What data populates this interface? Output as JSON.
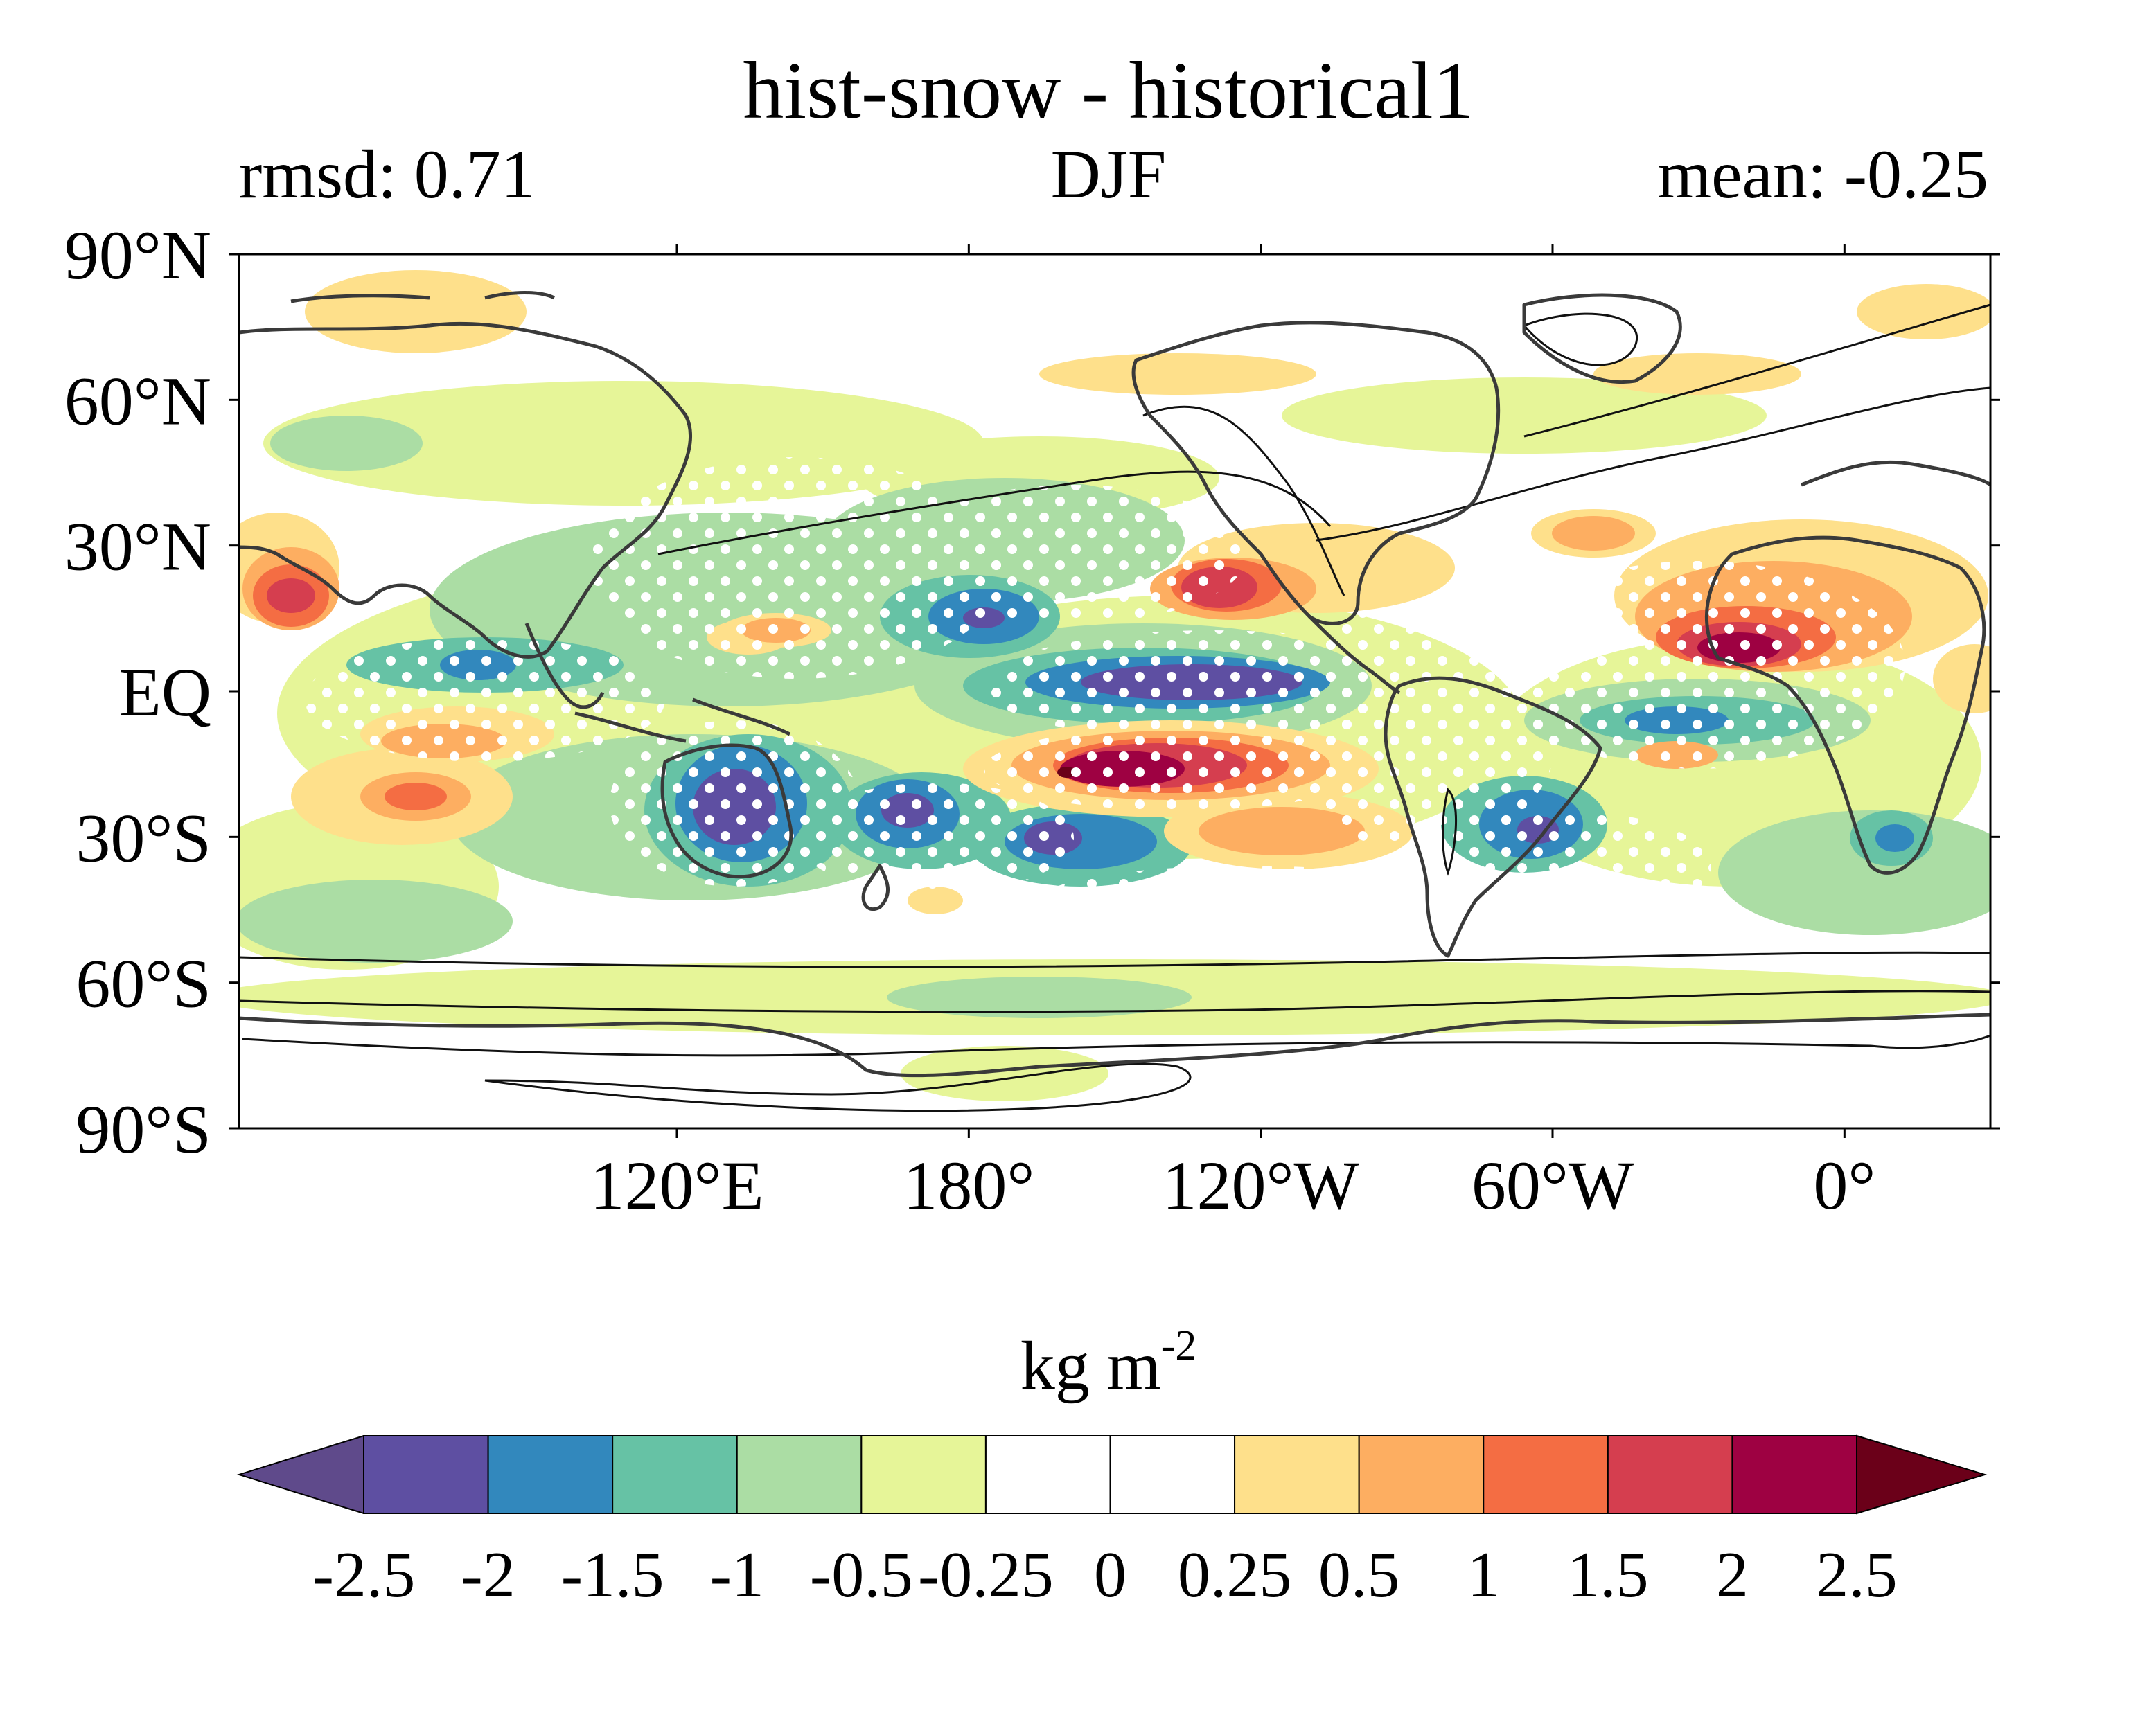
{
  "title": "hist-snow - historical1",
  "subtitle": {
    "left": "rmsd: 0.71",
    "center": "DJF",
    "right": "mean: -0.25"
  },
  "map": {
    "projection": "equirectangular",
    "central_longitude": "150°W",
    "lat_ticks": [
      "90°N",
      "60°N",
      "30°N",
      "EQ",
      "30°S",
      "60°S",
      "90°S"
    ],
    "lon_ticks": [
      "120°E",
      "180°",
      "120°W",
      "60°W",
      "0°"
    ],
    "stippling": "white dots mark significant areas",
    "contour_lines": "black"
  },
  "colorbar": {
    "label": "kg m",
    "label_exponent": "-2",
    "levels": [
      "-2.5",
      "-2",
      "-1.5",
      "-1",
      "-0.5",
      "-0.25",
      "0",
      "0.25",
      "0.5",
      "1",
      "1.5",
      "2",
      "2.5"
    ],
    "colors": [
      "#5f4a8b",
      "#5e4fa2",
      "#3288bd",
      "#66c2a5",
      "#abdda4",
      "#e6f598",
      "#ffffff",
      "#ffffff",
      "#fee08b",
      "#fdae61",
      "#f46d43",
      "#d53e4f",
      "#9e0142",
      "#6b0019"
    ],
    "extend": "both"
  }
}
